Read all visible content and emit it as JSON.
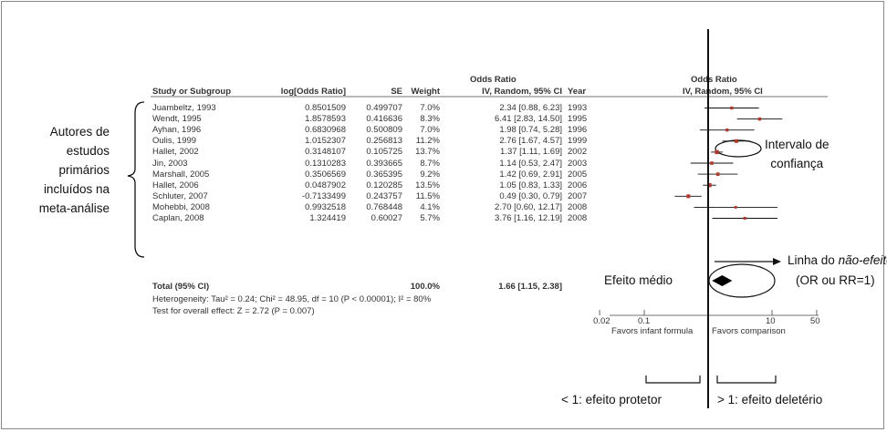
{
  "table": {
    "header_group": "Odds Ratio",
    "col_study": "Study or Subgroup",
    "col_log": "log[Odds Ratio]",
    "col_se": "SE",
    "col_weight": "Weight",
    "col_ci": "IV, Random, 95% CI",
    "col_year": "Year",
    "plot_header_group": "Odds Ratio",
    "plot_header_sub": "IV, Random, 95% CI",
    "rows": [
      {
        "study": "Juambeltz, 1993",
        "log": "0.8501509",
        "se": "0.499707",
        "weight": "7.0%",
        "ci": "2.34 [0.88, 6.23]",
        "year": "1993"
      },
      {
        "study": "Wendt, 1995",
        "log": "1.8578593",
        "se": "0.416636",
        "weight": "8.3%",
        "ci": "6.41 [2.83, 14.50]",
        "year": "1995"
      },
      {
        "study": "Ayhan, 1996",
        "log": "0.6830968",
        "se": "0.500809",
        "weight": "7.0%",
        "ci": "1.98 [0.74, 5.28]",
        "year": "1996"
      },
      {
        "study": "Oulis, 1999",
        "log": "1.0152307",
        "se": "0.256813",
        "weight": "11.2%",
        "ci": "2.76 [1.67, 4.57]",
        "year": "1999"
      },
      {
        "study": "Hallet, 2002",
        "log": "0.3148107",
        "se": "0.105725",
        "weight": "13.7%",
        "ci": "1.37 [1.11, 1.69]",
        "year": "2002"
      },
      {
        "study": "Jin, 2003",
        "log": "0.1310283",
        "se": "0.393665",
        "weight": "8.7%",
        "ci": "1.14 [0.53, 2.47]",
        "year": "2003"
      },
      {
        "study": "Marshall, 2005",
        "log": "0.3506569",
        "se": "0.365395",
        "weight": "9.2%",
        "ci": "1.42 [0.69, 2.91]",
        "year": "2005"
      },
      {
        "study": "Hallet, 2006",
        "log": "0.0487902",
        "se": "0.120285",
        "weight": "13.5%",
        "ci": "1.05 [0.83, 1.33]",
        "year": "2006"
      },
      {
        "study": "Schluter, 2007",
        "log": "-0.7133499",
        "se": "0.243757",
        "weight": "11.5%",
        "ci": "0.49 [0.30, 0.79]",
        "year": "2007"
      },
      {
        "study": "Mohebbi, 2008",
        "log": "0.9932518",
        "se": "0.768448",
        "weight": "4.1%",
        "ci": "2.70 [0.60, 12.17]",
        "year": "2008"
      },
      {
        "study": "Caplan, 2008",
        "log": "1.324419",
        "se": "0.60027",
        "weight": "5.7%",
        "ci": "3.76 [1.16, 12.19]",
        "year": "2008"
      }
    ],
    "total": {
      "label": "Total (95% CI)",
      "weight": "100.0%",
      "ci": "1.66 [1.15, 2.38]"
    },
    "heterogeneity": "Heterogeneity: Tau² = 0.24; Chi² = 48.95, df = 10 (P < 0.00001); I² = 80%",
    "overall_effect": "Test for overall effect: Z = 2.72 (P = 0.007)"
  },
  "axis": {
    "ticks": [
      {
        "value": 0.02,
        "label": "0.02"
      },
      {
        "value": 0.1,
        "label": "0.1"
      },
      {
        "value": 1,
        "label": "1"
      },
      {
        "value": 10,
        "label": "10"
      },
      {
        "value": 50,
        "label": "50"
      }
    ],
    "favors_left": "Favors infant formula",
    "favors_right": "Favors comparison",
    "scale": "log"
  },
  "forest": {
    "study_or": [
      2.34,
      6.41,
      1.98,
      2.76,
      1.37,
      1.14,
      1.42,
      1.05,
      0.49,
      2.7,
      3.76
    ],
    "study_lo": [
      0.88,
      2.83,
      0.74,
      1.67,
      1.11,
      0.53,
      0.69,
      0.83,
      0.3,
      0.6,
      1.16
    ],
    "study_hi": [
      6.23,
      14.5,
      5.28,
      4.57,
      1.69,
      2.47,
      2.91,
      1.33,
      0.79,
      12.17,
      12.19
    ],
    "pooled": {
      "or": 1.66,
      "lo": 1.15,
      "hi": 2.38
    },
    "marker_color": "#b03a2e",
    "line_color": "#111111"
  },
  "annotations": {
    "authors_lines": [
      "Autores de",
      "estudos",
      "primários",
      "incluídos na",
      "meta-análise"
    ],
    "ci_lines": [
      "Intervalo de",
      "confiança"
    ],
    "no_effect_prefix": "Linha do ",
    "no_effect_italic": "não-efeito",
    "no_effect_sub": "(OR ou RR=1)",
    "mean_effect": "Efeito médio",
    "protective": "< 1: efeito protetor",
    "deleterious": "> 1: efeito deletério"
  }
}
